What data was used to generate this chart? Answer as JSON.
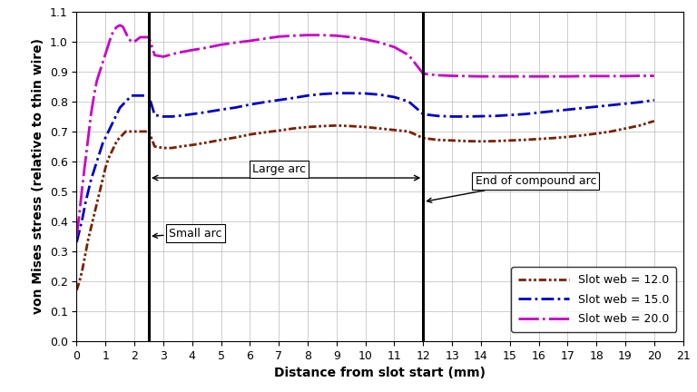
{
  "title": "",
  "xlabel": "Distance from slot start (mm)",
  "ylabel": "von Mises stress (relative to thin wire)",
  "xlim": [
    0,
    21
  ],
  "ylim": [
    0.0,
    1.1
  ],
  "xticks": [
    0,
    1,
    2,
    3,
    4,
    5,
    6,
    7,
    8,
    9,
    10,
    11,
    12,
    13,
    14,
    15,
    16,
    17,
    18,
    19,
    20,
    21
  ],
  "yticks": [
    0.0,
    0.1,
    0.2,
    0.3,
    0.4,
    0.5,
    0.6,
    0.7,
    0.8,
    0.9,
    1.0,
    1.1
  ],
  "vlines": [
    2.5,
    12.0
  ],
  "series": [
    {
      "label": "Slot web = 12.0",
      "color": "#7B2000",
      "linestyle": "dashdot2",
      "x": [
        0.0,
        0.1,
        0.2,
        0.3,
        0.4,
        0.5,
        0.6,
        0.7,
        0.8,
        0.9,
        1.0,
        1.1,
        1.2,
        1.3,
        1.4,
        1.5,
        1.6,
        1.7,
        1.8,
        1.9,
        2.0,
        2.2,
        2.5,
        2.7,
        3.0,
        3.3,
        3.6,
        4.0,
        4.5,
        5.0,
        5.5,
        6.0,
        6.5,
        7.0,
        7.5,
        8.0,
        8.5,
        9.0,
        9.5,
        10.0,
        10.5,
        11.0,
        11.5,
        12.0,
        12.5,
        13.0,
        13.5,
        14.0,
        14.5,
        15.0,
        15.5,
        16.0,
        16.5,
        17.0,
        17.5,
        18.0,
        18.5,
        19.0,
        19.5,
        20.0
      ],
      "y": [
        0.17,
        0.2,
        0.24,
        0.29,
        0.34,
        0.38,
        0.42,
        0.46,
        0.5,
        0.54,
        0.58,
        0.61,
        0.63,
        0.65,
        0.67,
        0.68,
        0.69,
        0.7,
        0.7,
        0.7,
        0.7,
        0.7,
        0.7,
        0.65,
        0.645,
        0.645,
        0.65,
        0.655,
        0.663,
        0.672,
        0.68,
        0.69,
        0.697,
        0.703,
        0.71,
        0.715,
        0.718,
        0.72,
        0.718,
        0.715,
        0.71,
        0.705,
        0.7,
        0.678,
        0.672,
        0.67,
        0.668,
        0.667,
        0.668,
        0.67,
        0.672,
        0.675,
        0.678,
        0.682,
        0.687,
        0.693,
        0.7,
        0.71,
        0.72,
        0.735
      ]
    },
    {
      "label": "Slot web = 15.0",
      "color": "#0000CD",
      "linestyle": "dashed",
      "x": [
        0.0,
        0.1,
        0.2,
        0.3,
        0.4,
        0.5,
        0.6,
        0.7,
        0.8,
        0.9,
        1.0,
        1.1,
        1.2,
        1.3,
        1.4,
        1.5,
        1.6,
        1.7,
        1.8,
        1.9,
        2.0,
        2.2,
        2.5,
        2.7,
        3.0,
        3.3,
        3.6,
        4.0,
        4.5,
        5.0,
        5.5,
        6.0,
        6.5,
        7.0,
        7.5,
        8.0,
        8.5,
        9.0,
        9.5,
        10.0,
        10.5,
        11.0,
        11.5,
        12.0,
        12.5,
        13.0,
        13.5,
        14.0,
        14.5,
        15.0,
        15.5,
        16.0,
        16.5,
        17.0,
        17.5,
        18.0,
        18.5,
        19.0,
        19.5,
        20.0
      ],
      "y": [
        0.33,
        0.37,
        0.41,
        0.46,
        0.5,
        0.54,
        0.57,
        0.6,
        0.63,
        0.66,
        0.68,
        0.7,
        0.72,
        0.74,
        0.76,
        0.78,
        0.79,
        0.8,
        0.81,
        0.82,
        0.82,
        0.82,
        0.82,
        0.755,
        0.75,
        0.75,
        0.753,
        0.758,
        0.765,
        0.773,
        0.78,
        0.79,
        0.798,
        0.805,
        0.812,
        0.82,
        0.825,
        0.828,
        0.828,
        0.827,
        0.823,
        0.815,
        0.8,
        0.758,
        0.752,
        0.75,
        0.75,
        0.751,
        0.752,
        0.755,
        0.758,
        0.763,
        0.768,
        0.773,
        0.778,
        0.783,
        0.788,
        0.793,
        0.798,
        0.805
      ]
    },
    {
      "label": "Slot web = 20.0",
      "color": "#CC00CC",
      "linestyle": "dashdot",
      "x": [
        0.0,
        0.1,
        0.2,
        0.3,
        0.4,
        0.5,
        0.6,
        0.7,
        0.8,
        0.9,
        1.0,
        1.1,
        1.2,
        1.3,
        1.4,
        1.5,
        1.6,
        1.7,
        1.8,
        1.9,
        2.0,
        2.2,
        2.5,
        2.7,
        3.0,
        3.5,
        4.0,
        4.5,
        5.0,
        5.5,
        6.0,
        6.5,
        7.0,
        7.5,
        8.0,
        8.5,
        9.0,
        9.5,
        10.0,
        10.5,
        11.0,
        11.5,
        12.0,
        12.5,
        13.0,
        13.5,
        14.0,
        14.5,
        15.0,
        15.5,
        16.0,
        16.5,
        17.0,
        17.5,
        18.0,
        18.5,
        19.0,
        19.5,
        20.0
      ],
      "y": [
        0.35,
        0.43,
        0.52,
        0.6,
        0.68,
        0.76,
        0.82,
        0.87,
        0.9,
        0.93,
        0.96,
        0.99,
        1.02,
        1.04,
        1.05,
        1.055,
        1.05,
        1.03,
        1.01,
        1.0,
        1.0,
        1.015,
        1.015,
        0.955,
        0.95,
        0.963,
        0.972,
        0.98,
        0.99,
        0.997,
        1.003,
        1.01,
        1.017,
        1.02,
        1.022,
        1.022,
        1.02,
        1.015,
        1.008,
        0.997,
        0.982,
        0.955,
        0.893,
        0.888,
        0.886,
        0.885,
        0.884,
        0.884,
        0.884,
        0.884,
        0.884,
        0.884,
        0.884,
        0.885,
        0.885,
        0.885,
        0.885,
        0.886,
        0.886
      ]
    }
  ],
  "background_color": "#ffffff",
  "grid_color": "#bbbbbb",
  "figsize": [
    7.68,
    4.32
  ],
  "dpi": 100
}
